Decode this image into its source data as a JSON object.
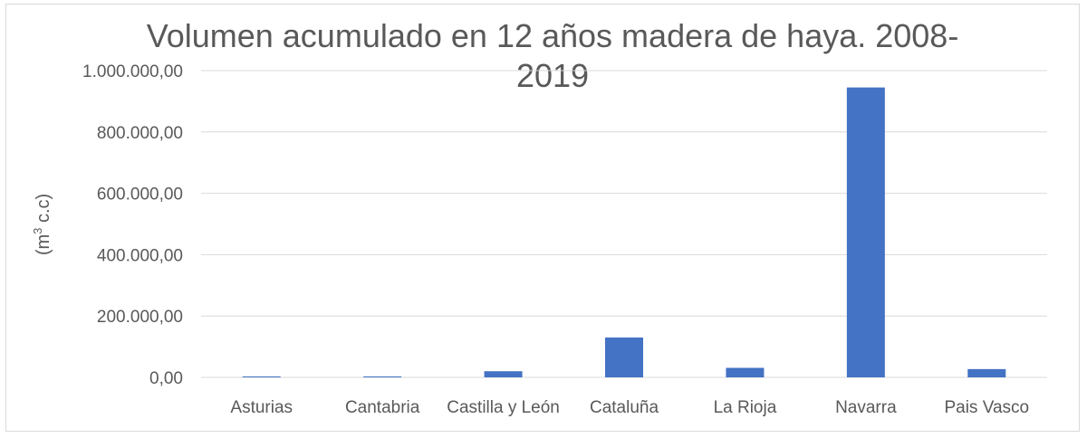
{
  "chart_data": {
    "type": "bar",
    "title_line1": "Volumen acumulado en 12 años madera de haya. 2008-",
    "title_line2": "2019",
    "ylabel": "(m3 c.c)",
    "ylabel_pre": "(m",
    "ylabel_sup": "3",
    "ylabel_post": " c.c)",
    "ylim": [
      0,
      1000000
    ],
    "yticks": [
      0,
      200000,
      400000,
      600000,
      800000,
      1000000
    ],
    "ytick_labels": [
      "0,00",
      "200.000,00",
      "400.000,00",
      "600.000,00",
      "800.000,00",
      "1.000.000,00"
    ],
    "categories": [
      "Asturias",
      "Cantabria",
      "Castilla y León",
      "Cataluña",
      "La Rioja",
      "Navarra",
      "Pais Vasco"
    ],
    "values": [
      3000,
      3000,
      20000,
      130000,
      31000,
      945000,
      27000
    ],
    "bar_color": "#4472c4",
    "grid": true
  }
}
